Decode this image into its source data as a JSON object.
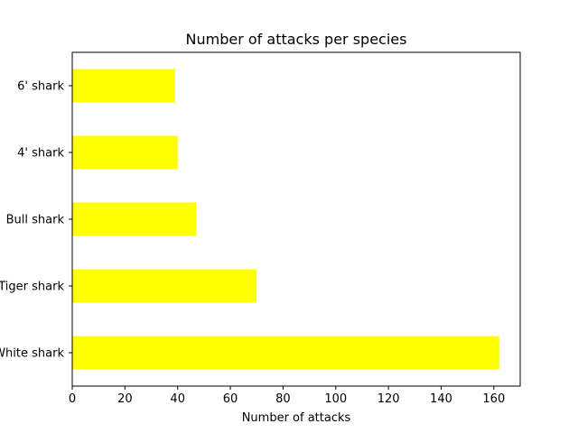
{
  "chart_data": {
    "type": "bar",
    "orientation": "horizontal",
    "title": "Number of attacks per species",
    "xlabel": "Number of attacks",
    "ylabel": "",
    "categories": [
      "White shark",
      "Tiger shark",
      "Bull shark",
      "4' shark",
      "6' shark"
    ],
    "values": [
      162,
      70,
      47,
      40,
      39
    ],
    "xlim": [
      0,
      170
    ],
    "xticks": [
      0,
      20,
      40,
      60,
      80,
      100,
      120,
      140,
      160
    ],
    "bar_color": "#ffff00",
    "grid": false,
    "legend": "none"
  }
}
